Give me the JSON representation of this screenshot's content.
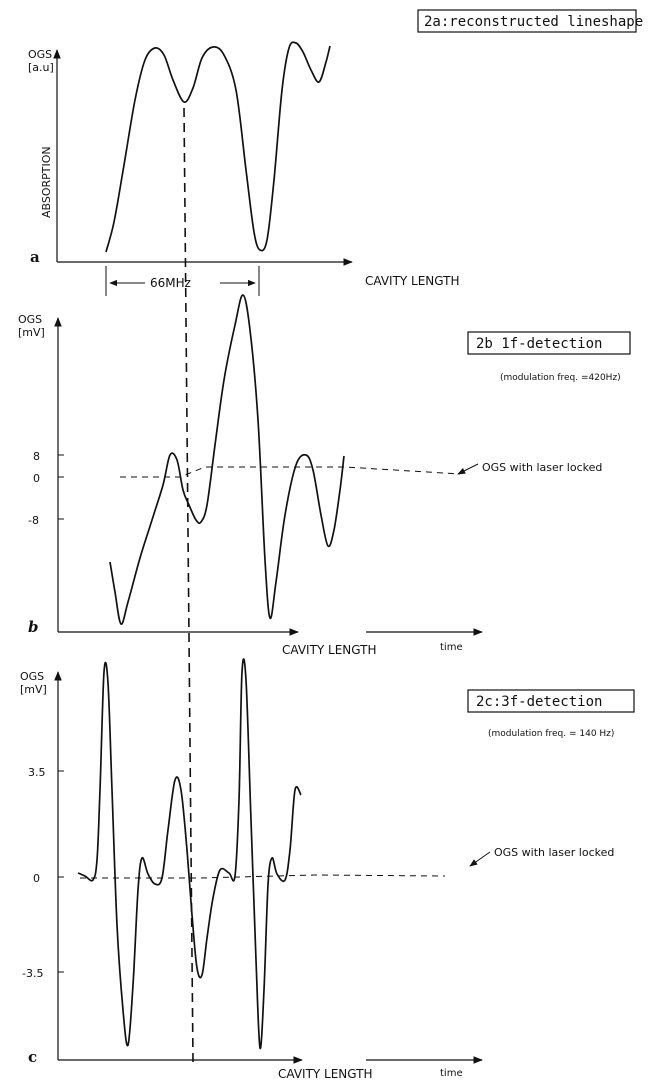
{
  "figures": [
    {
      "id": "a",
      "title": "2a:reconstructed lineshape",
      "panel_letter": "a",
      "ylabel_top": "OGS",
      "ylabel_unit": "[a.u]",
      "ylabel_side": "ABSORPTION",
      "xlabel": "CAVITY LENGTH",
      "scale_label": "66MHz"
    },
    {
      "id": "b",
      "title": "2b 1f-detection",
      "subtitle": "(modulation freq. =420Hz)",
      "panel_letter": "b",
      "ylabel_top": "OGS",
      "ylabel_unit": "[mV]",
      "yticks": [
        "8",
        "0",
        "-8"
      ],
      "xlabel": "CAVITY LENGTH",
      "xlabel2": "time",
      "annotation": "OGS with laser locked"
    },
    {
      "id": "c",
      "title": "2c:3f-detection",
      "subtitle": "(modulation freq. = 140 Hz)",
      "panel_letter": "c",
      "ylabel_top": "OGS",
      "ylabel_unit": "[mV]",
      "yticks": [
        "3.5",
        "0",
        "-3.5"
      ],
      "xlabel": "CAVITY LENGTH",
      "xlabel2": "time",
      "annotation": "OGS with laser locked"
    }
  ],
  "chart_data": [
    {
      "type": "line",
      "title": "2a:reconstructed lineshape",
      "xlabel": "CAVITY LENGTH",
      "ylabel": "OGS [a.u]",
      "grid": false,
      "series": [
        {
          "points": [
            [
              106,
              252
            ],
            [
              114,
              222
            ],
            [
              124,
              165
            ],
            [
              135,
              100
            ],
            [
              145,
              60
            ],
            [
              155,
              48
            ],
            [
              164,
              55
            ],
            [
              173,
              80
            ],
            [
              184,
              102
            ],
            [
              193,
              88
            ],
            [
              202,
              58
            ],
            [
              213,
              47
            ],
            [
              224,
              55
            ],
            [
              236,
              90
            ],
            [
              246,
              170
            ],
            [
              254,
              232
            ],
            [
              260,
              250
            ],
            [
              267,
              240
            ],
            [
              274,
              180
            ],
            [
              282,
              90
            ],
            [
              289,
              48
            ],
            [
              296,
              43
            ],
            [
              303,
              52
            ],
            [
              311,
              70
            ],
            [
              319,
              82
            ],
            [
              326,
              62
            ],
            [
              330,
              46
            ]
          ]
        }
      ]
    },
    {
      "type": "line",
      "title": "2b 1f-detection",
      "xlabel": "CAVITY LENGTH",
      "ylabel": "OGS [mV]",
      "grid": false,
      "series": [
        {
          "points": [
            [
              110,
              562
            ],
            [
              115,
              592
            ],
            [
              121,
              624
            ],
            [
              128,
              602
            ],
            [
              140,
              558
            ],
            [
              152,
              520
            ],
            [
              163,
              485
            ],
            [
              170,
              455
            ],
            [
              177,
              460
            ],
            [
              183,
              490
            ],
            [
              189,
              505
            ],
            [
              196,
              520
            ],
            [
              201,
              522
            ],
            [
              207,
              505
            ],
            [
              215,
              445
            ],
            [
              224,
              380
            ],
            [
              235,
              325
            ],
            [
              243,
              295
            ],
            [
              250,
              330
            ],
            [
              258,
              420
            ],
            [
              265,
              560
            ],
            [
              270,
              618
            ],
            [
              276,
              582
            ],
            [
              285,
              515
            ],
            [
              296,
              465
            ],
            [
              306,
              455
            ],
            [
              313,
              470
            ],
            [
              321,
              515
            ],
            [
              328,
              546
            ],
            [
              334,
              530
            ],
            [
              340,
              490
            ],
            [
              344,
              456
            ]
          ]
        },
        {
          "dashed": true,
          "points": [
            [
              120,
              477
            ],
            [
              180,
              477
            ],
            [
              205,
              467
            ],
            [
              345,
              467
            ],
            [
              460,
              474
            ]
          ]
        }
      ]
    },
    {
      "type": "line",
      "title": "2c:3f-detection",
      "xlabel": "CAVITY LENGTH",
      "ylabel": "OGS [mV]",
      "grid": false,
      "series": [
        {
          "points": [
            [
              78,
              873
            ],
            [
              85,
              876
            ],
            [
              93,
              880
            ],
            [
              97,
              860
            ],
            [
              100,
              790
            ],
            [
              104,
              672
            ],
            [
              108,
              683
            ],
            [
              112,
              790
            ],
            [
              117,
              925
            ],
            [
              123,
              1010
            ],
            [
              128,
              1045
            ],
            [
              133,
              985
            ],
            [
              138,
              890
            ],
            [
              142,
              858
            ],
            [
              148,
              874
            ],
            [
              155,
              884
            ],
            [
              162,
              878
            ],
            [
              168,
              830
            ],
            [
              175,
              780
            ],
            [
              181,
              790
            ],
            [
              187,
              850
            ],
            [
              192,
              915
            ],
            [
              197,
              968
            ],
            [
              202,
              975
            ],
            [
              207,
              938
            ],
            [
              213,
              898
            ],
            [
              220,
              870
            ],
            [
              229,
              873
            ],
            [
              235,
              876
            ],
            [
              239,
              800
            ],
            [
              242,
              672
            ],
            [
              246,
              680
            ],
            [
              251,
              820
            ],
            [
              256,
              960
            ],
            [
              260,
              1048
            ],
            [
              264,
              990
            ],
            [
              268,
              885
            ],
            [
              272,
              858
            ],
            [
              277,
              874
            ],
            [
              285,
              880
            ],
            [
              290,
              850
            ],
            [
              295,
              790
            ],
            [
              301,
              795
            ]
          ]
        },
        {
          "dashed": true,
          "points": [
            [
              80,
              878
            ],
            [
              200,
              878
            ],
            [
              315,
              875
            ],
            [
              445,
              876
            ]
          ]
        }
      ]
    }
  ]
}
